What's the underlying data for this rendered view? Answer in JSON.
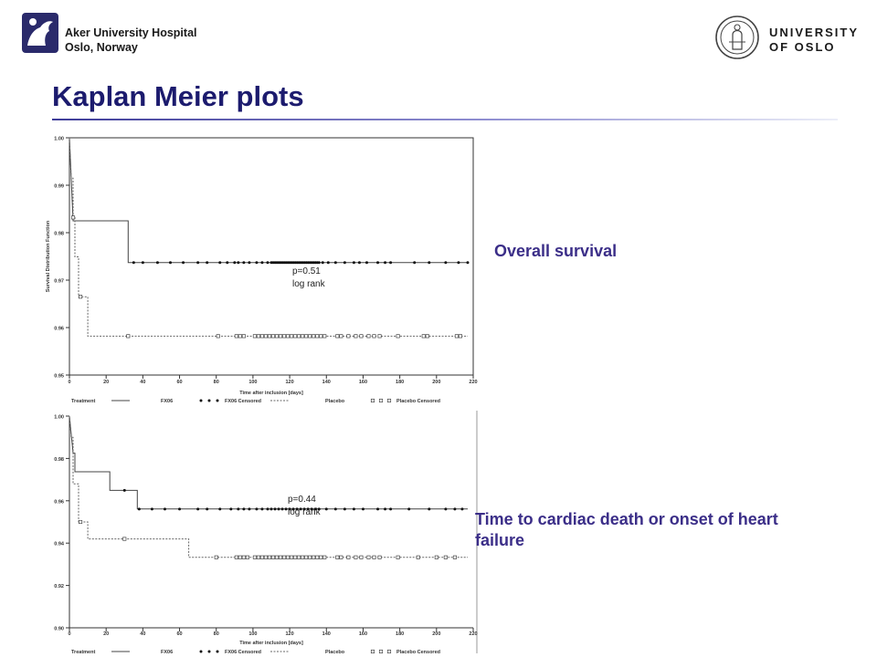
{
  "header": {
    "hospital_line1": "Aker University Hospital",
    "hospital_line2": "Oslo, Norway",
    "university_line1": "UNIVERSITY",
    "university_line2": "OF OSLO"
  },
  "slide": {
    "title": "Kaplan Meier plots"
  },
  "colors": {
    "title": "#1c1b6e",
    "caption": "#3b2e88"
  },
  "captions": {
    "top": "Overall survival",
    "bottom": "Time to cardiac death or onset of heart failure"
  },
  "chart_data": [
    {
      "type": "line",
      "title": "",
      "xlabel": "Time after inclusion [days]",
      "ylabel": "Survival Distribution Function",
      "xlim": [
        0,
        220
      ],
      "ylim": [
        0.95,
        1.0
      ],
      "xticks": [
        0,
        20,
        40,
        60,
        80,
        100,
        120,
        140,
        160,
        180,
        200,
        220
      ],
      "yticks": [
        0.95,
        0.96,
        0.97,
        0.98,
        0.99,
        1.0
      ],
      "ytick_labels": [
        "0.95",
        "0.96",
        "0.97",
        "0.98",
        "0.99",
        "1.00"
      ],
      "annotation": [
        "p=0.51",
        "log rank"
      ],
      "annotation_at": [
        100,
        0.972
      ],
      "legend_title": "Treatment",
      "legend_labels": [
        "FX06",
        "FX06 Censored",
        "Placebo",
        "Placebo Censored"
      ],
      "grid": false,
      "series": [
        {
          "name": "FX06",
          "style": "solid",
          "steps": [
            [
              0,
              1.0
            ],
            [
              2,
              0.9825
            ],
            [
              32,
              0.9825
            ],
            [
              32,
              0.9737
            ],
            [
              217,
              0.9737
            ]
          ],
          "censored_marker": "dot",
          "censored_y": 0.9737,
          "censored_x": [
            35,
            40,
            48,
            55,
            62,
            70,
            75,
            82,
            86,
            90,
            92,
            95,
            98,
            102,
            105,
            108,
            110,
            111,
            112,
            113,
            114,
            115,
            116,
            117,
            118,
            119,
            120,
            121,
            122,
            123,
            124,
            125,
            126,
            127,
            128,
            129,
            130,
            131,
            132,
            133,
            134,
            135,
            136,
            138,
            141,
            145,
            150,
            155,
            158,
            162,
            168,
            172,
            175,
            188,
            196,
            205,
            212,
            217
          ]
        },
        {
          "name": "Placebo",
          "style": "dashed",
          "steps": [
            [
              0,
              1.0
            ],
            [
              1,
              0.9915
            ],
            [
              2,
              0.9915
            ],
            [
              2,
              0.9832
            ],
            [
              3,
              0.9832
            ],
            [
              3,
              0.9749
            ],
            [
              5,
              0.9749
            ],
            [
              5,
              0.9665
            ],
            [
              10,
              0.9665
            ],
            [
              10,
              0.9582
            ],
            [
              217,
              0.9582
            ]
          ],
          "censored_marker": "square",
          "censored_points": [
            [
              2,
              0.9832
            ],
            [
              6,
              0.9665
            ],
            [
              32,
              0.9582
            ],
            [
              81,
              0.9582
            ],
            [
              91,
              0.9582
            ],
            [
              93,
              0.9582
            ],
            [
              95,
              0.9582
            ],
            [
              101,
              0.9582
            ],
            [
              103,
              0.9582
            ],
            [
              105,
              0.9582
            ],
            [
              107,
              0.9582
            ],
            [
              109,
              0.9582
            ],
            [
              111,
              0.9582
            ],
            [
              113,
              0.9582
            ],
            [
              115,
              0.9582
            ],
            [
              117,
              0.9582
            ],
            [
              119,
              0.9582
            ],
            [
              121,
              0.9582
            ],
            [
              123,
              0.9582
            ],
            [
              125,
              0.9582
            ],
            [
              127,
              0.9582
            ],
            [
              129,
              0.9582
            ],
            [
              131,
              0.9582
            ],
            [
              133,
              0.9582
            ],
            [
              135,
              0.9582
            ],
            [
              137,
              0.9582
            ],
            [
              139,
              0.9582
            ],
            [
              146,
              0.9582
            ],
            [
              148,
              0.9582
            ],
            [
              152,
              0.9582
            ],
            [
              156,
              0.9582
            ],
            [
              159,
              0.9582
            ],
            [
              163,
              0.9582
            ],
            [
              166,
              0.9582
            ],
            [
              169,
              0.9582
            ],
            [
              179,
              0.9582
            ],
            [
              193,
              0.9582
            ],
            [
              195,
              0.9582
            ],
            [
              211,
              0.9582
            ],
            [
              213,
              0.9582
            ]
          ]
        }
      ]
    },
    {
      "type": "line",
      "title": "",
      "xlabel": "Time after inclusion [days]",
      "ylabel": "",
      "xlim": [
        0,
        220
      ],
      "ylim": [
        0.9,
        1.0
      ],
      "xticks": [
        0,
        20,
        40,
        60,
        80,
        100,
        120,
        140,
        160,
        180,
        200,
        220
      ],
      "yticks": [
        0.9,
        0.92,
        0.94,
        0.96,
        0.98,
        1.0
      ],
      "ytick_labels": [
        "0.90",
        "0.92",
        "0.94",
        "0.96",
        "0.98",
        "1.00"
      ],
      "annotation": [
        "p=0.44",
        "log rank"
      ],
      "annotation_at": [
        100,
        0.96
      ],
      "legend_title": "Treatment",
      "legend_labels": [
        "FX06",
        "FX06 Censored",
        "Placebo",
        "Placebo Censored"
      ],
      "grid": false,
      "series": [
        {
          "name": "FX06",
          "style": "solid",
          "steps": [
            [
              0,
              1.0
            ],
            [
              2,
              0.9825
            ],
            [
              3,
              0.9825
            ],
            [
              3,
              0.9737
            ],
            [
              22,
              0.9737
            ],
            [
              22,
              0.9649
            ],
            [
              37,
              0.9649
            ],
            [
              37,
              0.9561
            ],
            [
              217,
              0.9561
            ]
          ],
          "censored_marker": "dot",
          "censored_y": 0.9561,
          "censored_points": [
            [
              30,
              0.9649
            ]
          ],
          "censored_x": [
            38,
            45,
            52,
            60,
            70,
            75,
            82,
            88,
            92,
            95,
            98,
            102,
            105,
            108,
            110,
            112,
            114,
            116,
            118,
            120,
            122,
            124,
            126,
            128,
            130,
            132,
            134,
            136,
            140,
            145,
            150,
            155,
            160,
            168,
            172,
            175,
            185,
            196,
            205,
            210,
            214
          ]
        },
        {
          "name": "Placebo",
          "style": "dashed",
          "steps": [
            [
              0,
              1.0
            ],
            [
              1,
              0.99
            ],
            [
              2,
              0.99
            ],
            [
              2,
              0.968
            ],
            [
              5,
              0.968
            ],
            [
              5,
              0.95
            ],
            [
              10,
              0.95
            ],
            [
              10,
              0.942
            ],
            [
              65,
              0.942
            ],
            [
              65,
              0.9333
            ],
            [
              217,
              0.9333
            ]
          ],
          "censored_marker": "square",
          "censored_points": [
            [
              6,
              0.95
            ],
            [
              30,
              0.942
            ],
            [
              80,
              0.9333
            ],
            [
              91,
              0.9333
            ],
            [
              93,
              0.9333
            ],
            [
              95,
              0.9333
            ],
            [
              97,
              0.9333
            ],
            [
              101,
              0.9333
            ],
            [
              103,
              0.9333
            ],
            [
              105,
              0.9333
            ],
            [
              107,
              0.9333
            ],
            [
              109,
              0.9333
            ],
            [
              111,
              0.9333
            ],
            [
              113,
              0.9333
            ],
            [
              115,
              0.9333
            ],
            [
              117,
              0.9333
            ],
            [
              119,
              0.9333
            ],
            [
              121,
              0.9333
            ],
            [
              123,
              0.9333
            ],
            [
              125,
              0.9333
            ],
            [
              127,
              0.9333
            ],
            [
              129,
              0.9333
            ],
            [
              131,
              0.9333
            ],
            [
              133,
              0.9333
            ],
            [
              135,
              0.9333
            ],
            [
              137,
              0.9333
            ],
            [
              139,
              0.9333
            ],
            [
              146,
              0.9333
            ],
            [
              148,
              0.9333
            ],
            [
              152,
              0.9333
            ],
            [
              156,
              0.9333
            ],
            [
              159,
              0.9333
            ],
            [
              163,
              0.9333
            ],
            [
              166,
              0.9333
            ],
            [
              169,
              0.9333
            ],
            [
              179,
              0.9333
            ],
            [
              190,
              0.9333
            ],
            [
              200,
              0.9333
            ],
            [
              205,
              0.9333
            ],
            [
              210,
              0.9333
            ]
          ]
        }
      ]
    }
  ]
}
